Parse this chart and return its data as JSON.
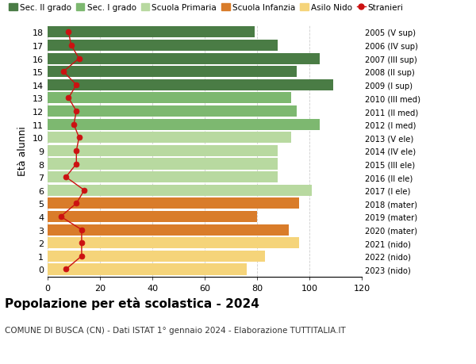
{
  "ages": [
    18,
    17,
    16,
    15,
    14,
    13,
    12,
    11,
    10,
    9,
    8,
    7,
    6,
    5,
    4,
    3,
    2,
    1,
    0
  ],
  "right_labels": [
    "2005 (V sup)",
    "2006 (IV sup)",
    "2007 (III sup)",
    "2008 (II sup)",
    "2009 (I sup)",
    "2010 (III med)",
    "2011 (II med)",
    "2012 (I med)",
    "2013 (V ele)",
    "2014 (IV ele)",
    "2015 (III ele)",
    "2016 (II ele)",
    "2017 (I ele)",
    "2018 (mater)",
    "2019 (mater)",
    "2020 (mater)",
    "2021 (nido)",
    "2022 (nido)",
    "2023 (nido)"
  ],
  "bar_values": [
    79,
    88,
    104,
    95,
    109,
    93,
    95,
    104,
    93,
    88,
    88,
    88,
    101,
    96,
    80,
    92,
    96,
    83,
    76
  ],
  "bar_colors": [
    "#4a7c45",
    "#4a7c45",
    "#4a7c45",
    "#4a7c45",
    "#4a7c45",
    "#7db870",
    "#7db870",
    "#7db870",
    "#b8d9a0",
    "#b8d9a0",
    "#b8d9a0",
    "#b8d9a0",
    "#b8d9a0",
    "#d97c2a",
    "#d97c2a",
    "#d97c2a",
    "#f5d47a",
    "#f5d47a",
    "#f5d47a"
  ],
  "stranieri_values": [
    8,
    9,
    12,
    6,
    11,
    8,
    11,
    10,
    12,
    11,
    11,
    7,
    14,
    11,
    5,
    13,
    13,
    13,
    7
  ],
  "legend_labels": [
    "Sec. II grado",
    "Sec. I grado",
    "Scuola Primaria",
    "Scuola Infanzia",
    "Asilo Nido",
    "Stranieri"
  ],
  "legend_colors": [
    "#4a7c45",
    "#7db870",
    "#b8d9a0",
    "#d97c2a",
    "#f5d47a",
    "#cc1111"
  ],
  "title": "Popolazione per età scolastica - 2024",
  "subtitle": "COMUNE DI BUSCA (CN) - Dati ISTAT 1° gennaio 2024 - Elaborazione TUTTITALIA.IT",
  "ylabel_left": "Età alunni",
  "xlim": [
    0,
    120
  ],
  "xticks": [
    0,
    20,
    40,
    60,
    80,
    100,
    120
  ],
  "stranieri_line_color": "#cc1111",
  "bar_height": 0.85,
  "background_color": "#ffffff",
  "grid_color": "#cccccc"
}
